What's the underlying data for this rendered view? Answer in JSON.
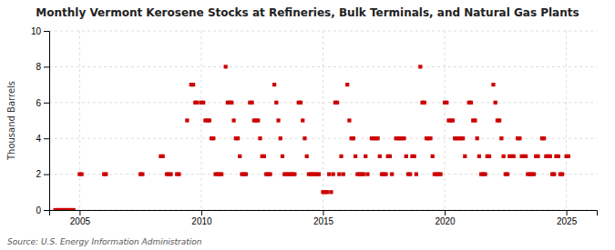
{
  "chart_data": {
    "type": "scatter",
    "title": "Monthly Vermont Kerosene Stocks at Refineries, Bulk Terminals, and Natural Gas Plants",
    "y_label": "Thousand Barrels",
    "annotations": [
      "Source: U.S. Energy Information Administration"
    ],
    "color": "#CC0000",
    "marker": "square",
    "grid": true,
    "xlim": [
      2003.75,
      2026.25
    ],
    "ylim": [
      0,
      10
    ],
    "xticks": [
      2005,
      2010,
      2015,
      2020,
      2025
    ],
    "yticks": [
      0,
      2,
      4,
      6,
      8,
      10
    ],
    "x": [
      2004.0,
      2004.083,
      2004.167,
      2004.25,
      2004.333,
      2004.417,
      2004.5,
      2004.583,
      2004.667,
      2004.75,
      2005.0,
      2005.083,
      2006.0,
      2006.083,
      2007.5,
      2007.583,
      2008.333,
      2008.417,
      2008.583,
      2008.667,
      2008.75,
      2009.0,
      2009.083,
      2009.417,
      2009.583,
      2009.667,
      2009.75,
      2009.833,
      2010.0,
      2010.083,
      2010.167,
      2010.25,
      2010.333,
      2010.417,
      2010.5,
      2010.583,
      2010.667,
      2010.75,
      2010.833,
      2011.0,
      2011.083,
      2011.167,
      2011.25,
      2011.333,
      2011.417,
      2011.5,
      2011.583,
      2011.667,
      2011.75,
      2011.833,
      2012.0,
      2012.083,
      2012.167,
      2012.25,
      2012.333,
      2012.417,
      2012.5,
      2012.583,
      2012.667,
      2012.75,
      2012.833,
      2013.0,
      2013.083,
      2013.167,
      2013.25,
      2013.333,
      2013.417,
      2013.5,
      2013.583,
      2013.667,
      2013.75,
      2013.833,
      2014.0,
      2014.083,
      2014.167,
      2014.25,
      2014.333,
      2014.417,
      2014.5,
      2014.583,
      2014.667,
      2014.75,
      2014.833,
      2015.0,
      2015.083,
      2015.167,
      2015.25,
      2015.333,
      2015.417,
      2015.5,
      2015.583,
      2015.667,
      2015.75,
      2015.833,
      2016.0,
      2016.083,
      2016.167,
      2016.25,
      2016.333,
      2016.417,
      2016.5,
      2016.583,
      2016.667,
      2016.75,
      2016.833,
      2017.0,
      2017.083,
      2017.167,
      2017.25,
      2017.333,
      2017.417,
      2017.5,
      2017.583,
      2017.667,
      2017.75,
      2017.833,
      2018.0,
      2018.083,
      2018.167,
      2018.25,
      2018.333,
      2018.417,
      2018.5,
      2018.583,
      2018.667,
      2018.75,
      2018.833,
      2019.0,
      2019.083,
      2019.167,
      2019.25,
      2019.333,
      2019.417,
      2019.5,
      2019.583,
      2019.667,
      2019.75,
      2019.833,
      2020.0,
      2020.083,
      2020.167,
      2020.25,
      2020.333,
      2020.417,
      2020.5,
      2020.583,
      2020.667,
      2020.75,
      2020.833,
      2021.0,
      2021.083,
      2021.167,
      2021.25,
      2021.333,
      2021.417,
      2021.5,
      2021.583,
      2021.667,
      2021.75,
      2021.833,
      2022.0,
      2022.083,
      2022.167,
      2022.25,
      2022.333,
      2022.417,
      2022.5,
      2022.583,
      2022.667,
      2022.75,
      2022.833,
      2023.0,
      2023.083,
      2023.167,
      2023.25,
      2023.333,
      2023.417,
      2023.5,
      2023.583,
      2023.667,
      2023.75,
      2023.833,
      2024.0,
      2024.083,
      2024.167,
      2024.25,
      2024.333,
      2024.417,
      2024.5,
      2024.583,
      2024.667,
      2024.75,
      2024.833,
      2025.0,
      2025.083
    ],
    "values": [
      0,
      0,
      0,
      0,
      0,
      0,
      0,
      0,
      0,
      0,
      2,
      2,
      2,
      2,
      2,
      2,
      3,
      3,
      2,
      2,
      2,
      2,
      2,
      5,
      7,
      7,
      6,
      6,
      6,
      6,
      5,
      5,
      5,
      4,
      4,
      2,
      2,
      2,
      2,
      8,
      6,
      6,
      6,
      5,
      4,
      4,
      3,
      2,
      2,
      2,
      6,
      6,
      5,
      5,
      5,
      4,
      3,
      3,
      2,
      2,
      2,
      7,
      6,
      5,
      4,
      3,
      2,
      2,
      2,
      2,
      2,
      2,
      6,
      6,
      5,
      4,
      3,
      2,
      2,
      2,
      2,
      2,
      2,
      1,
      1,
      1,
      2,
      1,
      2,
      6,
      6,
      2,
      3,
      2,
      7,
      5,
      4,
      4,
      3,
      2,
      2,
      2,
      2,
      3,
      2,
      4,
      4,
      4,
      4,
      3,
      2,
      2,
      2,
      3,
      3,
      2,
      4,
      4,
      4,
      4,
      4,
      3,
      2,
      2,
      3,
      3,
      2,
      8,
      6,
      6,
      4,
      4,
      4,
      3,
      2,
      2,
      2,
      2,
      6,
      6,
      5,
      5,
      5,
      4,
      4,
      4,
      4,
      4,
      3,
      6,
      6,
      5,
      5,
      4,
      3,
      2,
      2,
      2,
      3,
      3,
      7,
      6,
      5,
      5,
      4,
      3,
      2,
      2,
      3,
      3,
      3,
      4,
      4,
      3,
      3,
      3,
      2,
      2,
      2,
      2,
      3,
      3,
      4,
      4,
      3,
      3,
      3,
      2,
      2,
      3,
      3,
      2,
      2,
      3,
      3
    ]
  }
}
